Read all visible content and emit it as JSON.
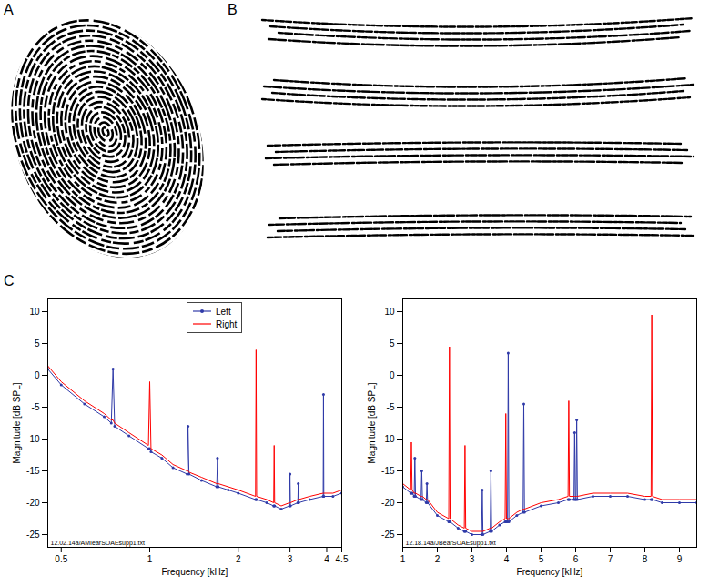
{
  "panel_labels": [
    "A",
    "B",
    "C"
  ],
  "chart_data": [
    {
      "type": "line",
      "x_label": "Frequency [kHz]",
      "y_label": "Magnitude [dB SPL]",
      "log": "x",
      "xlim": [
        0.45,
        4.5
      ],
      "xticks": [
        0.5,
        1,
        2,
        3,
        4,
        4.5
      ],
      "ylim": [
        -27,
        12
      ],
      "yticks": [
        -25,
        -20,
        -15,
        -10,
        -5,
        0,
        5,
        10
      ],
      "legend": "top",
      "annotations": [
        "12.02.14a/AMIearSOAEsupp1.txt"
      ],
      "x": [
        0.45,
        0.5,
        0.6,
        0.7,
        0.74,
        0.75,
        0.76,
        0.85,
        0.99,
        1.0,
        1.01,
        1.1,
        1.2,
        1.34,
        1.35,
        1.36,
        1.5,
        1.69,
        1.7,
        1.71,
        1.85,
        2.0,
        2.29,
        2.3,
        2.31,
        2.5,
        2.64,
        2.65,
        2.66,
        2.8,
        2.99,
        3.0,
        3.01,
        3.19,
        3.2,
        3.21,
        3.5,
        3.89,
        3.9,
        3.91,
        4.2,
        4.5
      ],
      "series": [
        {
          "name": "Left",
          "color": "#2f3aa8",
          "marker": "dot",
          "values": [
            1,
            -1.5,
            -4.5,
            -6.5,
            -7.5,
            1,
            -8,
            -9.5,
            -11.5,
            -11.5,
            -12,
            -13,
            -14.5,
            -15.5,
            -8,
            -15.5,
            -16.5,
            -17.5,
            -13,
            -17.5,
            -18,
            -18.5,
            -19.5,
            -19.5,
            -19.5,
            -20,
            -20.5,
            -20.5,
            -20.5,
            -21,
            -20.5,
            -15.5,
            -20.5,
            -20,
            -17,
            -20,
            -19.5,
            -19,
            -3,
            -19,
            -19,
            -18.5
          ]
        },
        {
          "name": "Right",
          "color": "#ff0000",
          "marker": "none",
          "values": [
            1.5,
            -1,
            -4,
            -6,
            -7,
            -7,
            -7.5,
            -9,
            -11,
            -1,
            -11.5,
            -12.5,
            -14,
            -15,
            -15,
            -15.2,
            -16,
            -17,
            -17,
            -17,
            -17.5,
            -18,
            -19,
            4,
            -19,
            -19.5,
            -20,
            -11,
            -20,
            -20.5,
            -20,
            -20,
            -20,
            -19.5,
            -19.5,
            -19.5,
            -19,
            -18.5,
            -18.5,
            -18.5,
            -18.5,
            -18
          ]
        }
      ]
    },
    {
      "type": "line",
      "x_label": "Frequency [kHz]",
      "y_label": "Magnitude [dB SPL]",
      "xlim": [
        1,
        9.5
      ],
      "xticks": [
        1,
        2,
        3,
        4,
        5,
        6,
        7,
        8,
        9
      ],
      "ylim": [
        -27,
        12
      ],
      "yticks": [
        -25,
        -20,
        -15,
        -10,
        -5,
        0,
        5,
        10
      ],
      "annotations": [
        "12.18.14a/JBearSOAEsupp1.txt"
      ],
      "x": [
        1.0,
        1.23,
        1.25,
        1.27,
        1.33,
        1.35,
        1.37,
        1.53,
        1.55,
        1.57,
        1.68,
        1.7,
        1.72,
        2.0,
        2.33,
        2.35,
        2.37,
        2.6,
        2.78,
        2.8,
        2.82,
        3.0,
        3.28,
        3.3,
        3.32,
        3.53,
        3.55,
        3.57,
        3.8,
        3.96,
        3.98,
        4.0,
        4.03,
        4.05,
        4.07,
        4.3,
        4.48,
        4.5,
        4.52,
        5.0,
        5.5,
        5.78,
        5.8,
        5.82,
        5.95,
        5.97,
        5.99,
        6.01,
        6.03,
        6.05,
        6.5,
        7.0,
        7.5,
        8.0,
        8.18,
        8.2,
        8.22,
        8.5,
        9.0,
        9.5
      ],
      "series": [
        {
          "name": "Left",
          "color": "#2f3aa8",
          "marker": "dot",
          "values": [
            -17.5,
            -18.5,
            -18.5,
            -18.5,
            -19,
            -13,
            -19,
            -19.5,
            -15,
            -19.5,
            -20,
            -17,
            -20,
            -22,
            -23,
            -23,
            -23,
            -24,
            -24.5,
            -24.5,
            -24.5,
            -25,
            -25,
            -18,
            -25,
            -24.5,
            -15,
            -24.5,
            -23.5,
            -23,
            -23,
            -23,
            -23,
            3.5,
            -23,
            -22,
            -21.5,
            -4.5,
            -21.5,
            -20.5,
            -20,
            -19.5,
            -19.5,
            -19.5,
            -19.5,
            -9,
            -19.5,
            -19.5,
            -7,
            -19.5,
            -19,
            -19,
            -19,
            -19.5,
            -19.5,
            -19.5,
            -19.5,
            -20,
            -20,
            -20
          ]
        },
        {
          "name": "Right",
          "color": "#ff0000",
          "marker": "none",
          "values": [
            -17,
            -18,
            -10.5,
            -18,
            -18.5,
            -18.5,
            -18.5,
            -19,
            -19,
            -19,
            -19.5,
            -19.5,
            -19.5,
            -21.5,
            -22.5,
            4.5,
            -22.5,
            -23.5,
            -24,
            -11,
            -24,
            -24.5,
            -24.5,
            -24.5,
            -24.5,
            -24,
            -24,
            -24,
            -23,
            -22.5,
            -6,
            -22.5,
            -22.5,
            -22.5,
            -22.5,
            -21.5,
            -21,
            -21,
            -21,
            -20,
            -19.5,
            -19,
            -4,
            -19,
            -19,
            -19,
            -19,
            -19,
            -19,
            -19,
            -18.5,
            -18.5,
            -18.5,
            -19,
            -19,
            9.5,
            -19,
            -19.5,
            -19.5,
            -19.5
          ]
        }
      ]
    }
  ]
}
